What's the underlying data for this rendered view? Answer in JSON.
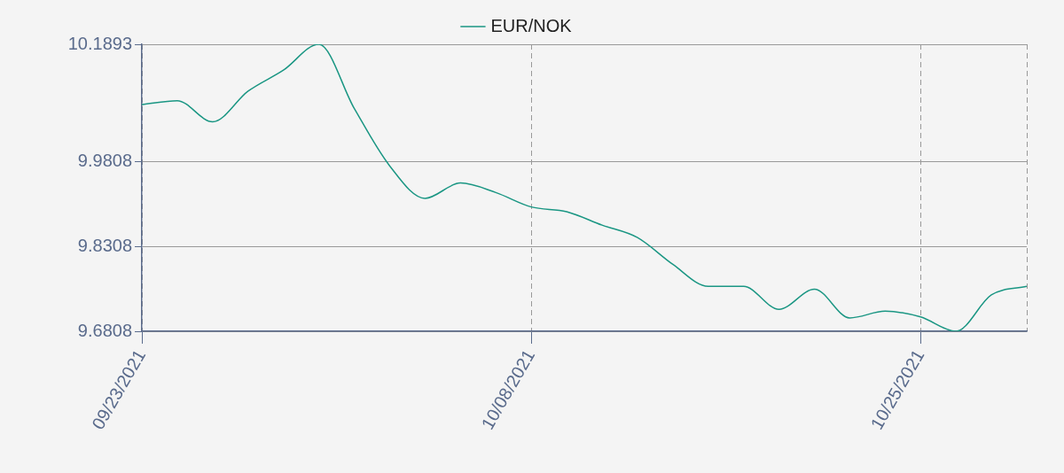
{
  "chart_data": {
    "type": "line",
    "categories": [
      "09/23/2021",
      null,
      null,
      null,
      null,
      null,
      null,
      null,
      null,
      null,
      null,
      "10/08/2021",
      null,
      null,
      null,
      null,
      null,
      null,
      null,
      null,
      null,
      null,
      "10/25/2021",
      null,
      null,
      null
    ],
    "series": [
      {
        "name": "EUR/NOK",
        "color": "#1a9683",
        "values": [
          10.0825,
          10.0893,
          10.052,
          10.1062,
          10.1435,
          10.1893,
          10.0757,
          9.974,
          9.9164,
          9.9435,
          9.9266,
          9.9011,
          9.8927,
          9.8689,
          9.8469,
          9.7994,
          9.7605,
          9.7605,
          9.7198,
          9.7554,
          9.7045,
          9.7164,
          9.7062,
          9.6808,
          9.7452,
          9.7605
        ]
      }
    ],
    "ylim": [
      9.6808,
      10.1893
    ],
    "yticks": [
      9.6808,
      9.8308,
      9.9808,
      10.1893
    ],
    "grid": true,
    "legend": "top",
    "marker": "none",
    "line_style": "solid"
  }
}
